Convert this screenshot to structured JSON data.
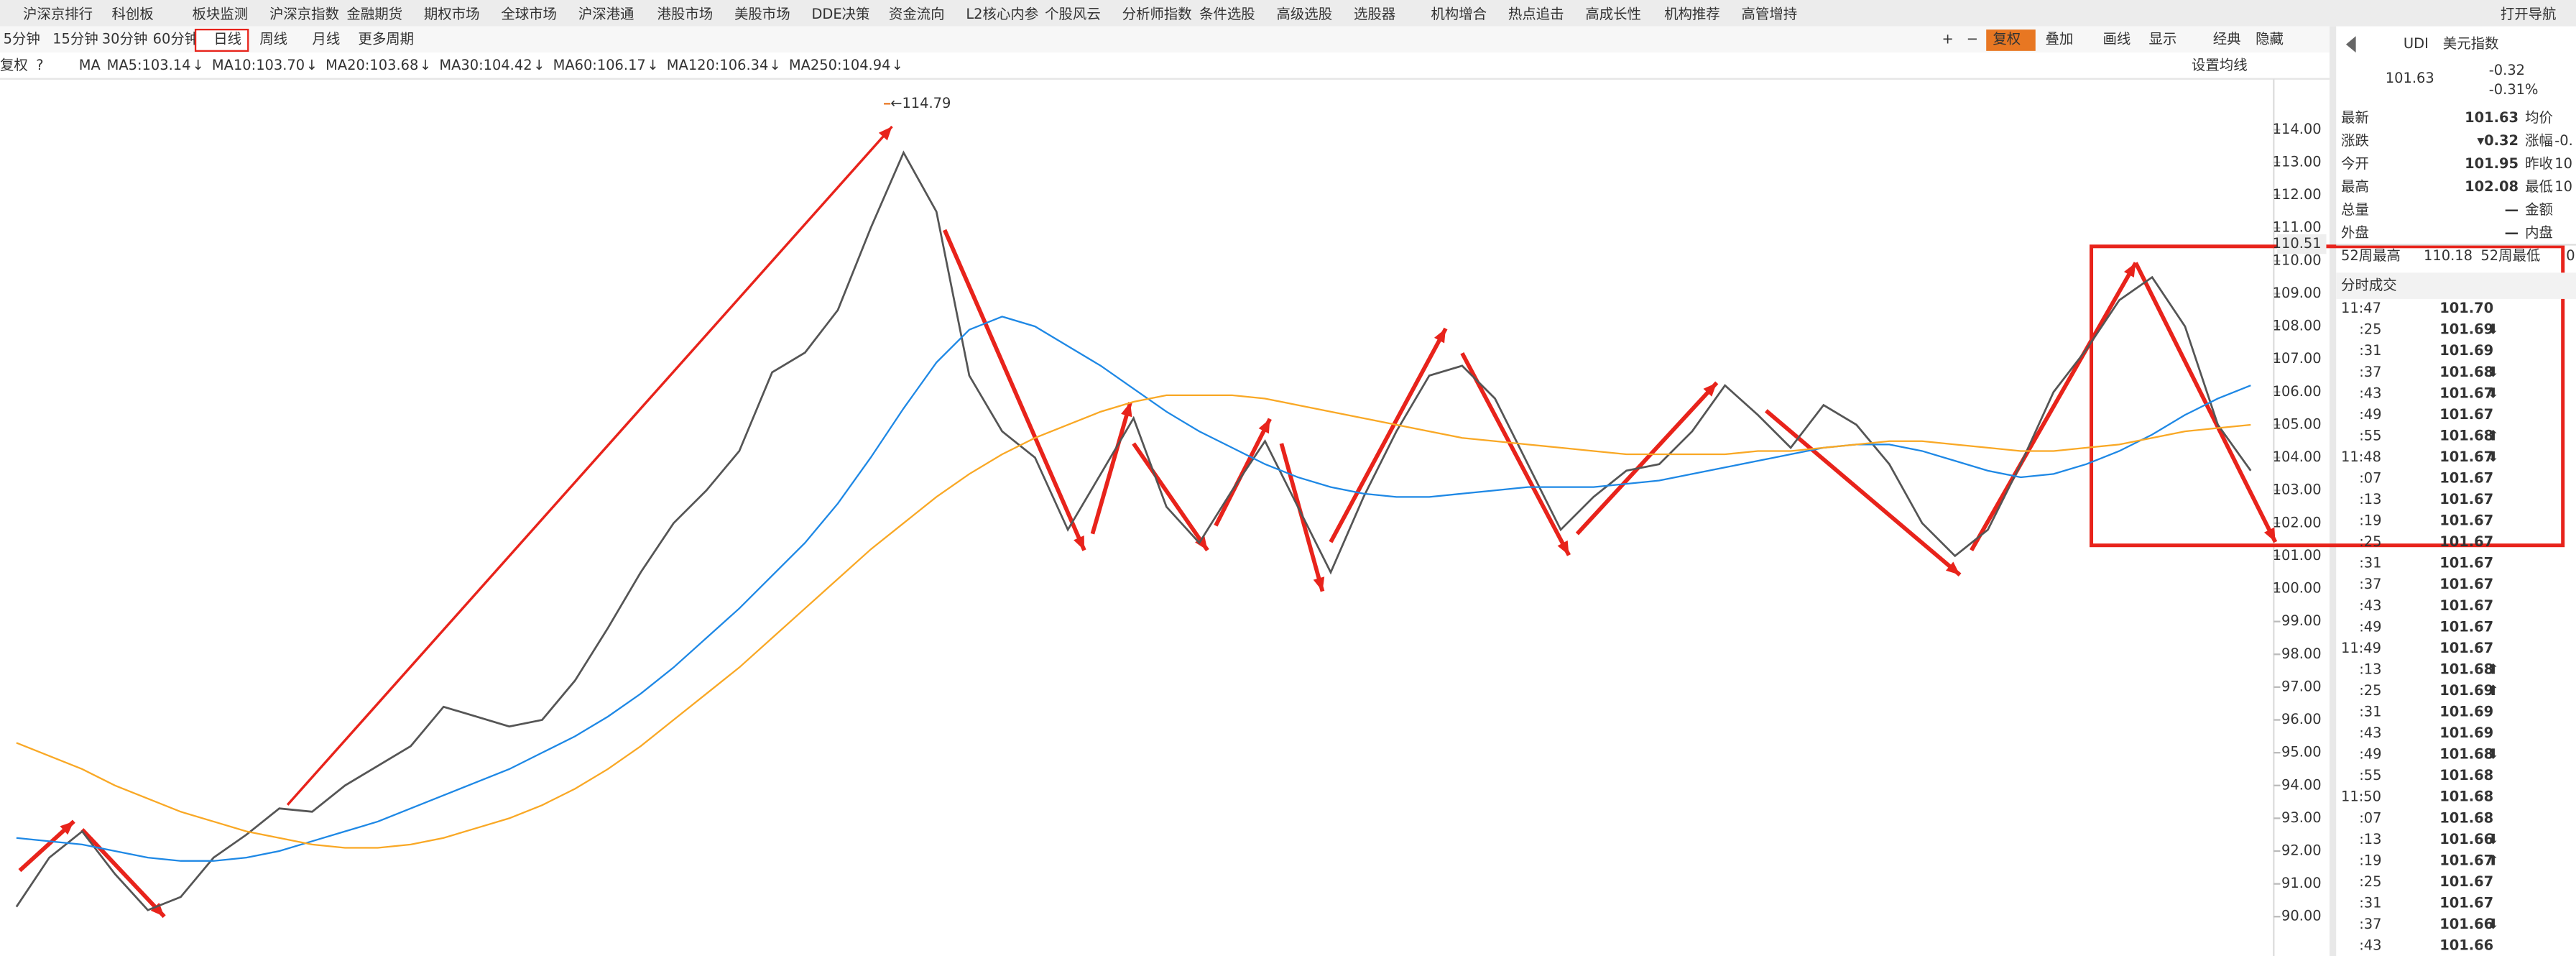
{
  "menu": [
    "沪深京排行",
    "科创板",
    "板块监测",
    "沪深京指数",
    "金融期货",
    "期权市场",
    "全球市场",
    "沪深港通",
    "港股市场",
    "美股市场",
    "DDE决策",
    "资金流向",
    "L2核心内参",
    "个股风云",
    "分析师指数",
    "条件选股",
    "高级选股",
    "选股器",
    "机构增合",
    "热点追击",
    "高成长性",
    "机构推荐",
    "高管增持",
    "打开导航"
  ],
  "periods": [
    "5分钟",
    "15分钟",
    "30分钟",
    "60分钟",
    "日线",
    "周线",
    "月线",
    "更多周期"
  ],
  "tools": [
    "+",
    "−",
    "复权",
    "叠加",
    "画线",
    "显示",
    "经典",
    "隐藏"
  ],
  "ma_bar": {
    "prefix": [
      "复权",
      "?",
      "MA"
    ],
    "items": [
      {
        "label": "MA5:103.14",
        "arrow": "↓",
        "color": "#1a237e"
      },
      {
        "label": "MA10:103.70",
        "arrow": "↓",
        "color": "#e040fb"
      },
      {
        "label": "MA20:103.68",
        "arrow": "↓",
        "color": "#555555"
      },
      {
        "label": "MA30:104.42",
        "arrow": "↓",
        "color": "#b71c1c"
      },
      {
        "label": "MA60:106.17",
        "arrow": "↓",
        "color": "#2e7d32"
      },
      {
        "label": "MA120:106.34",
        "arrow": "↓",
        "color": "#1e88e5"
      },
      {
        "label": "MA250:104.94",
        "arrow": "↓",
        "color": "#f9a825"
      }
    ],
    "settings": "设置均线"
  },
  "chart_data": {
    "type": "line",
    "ylim": [
      88.8,
      115.55
    ],
    "yticks": [
      {
        "value": 90,
        "label": "90.00"
      },
      {
        "value": 91,
        "label": "91.00"
      },
      {
        "value": 92,
        "label": "92.00"
      },
      {
        "value": 93,
        "label": "93.00"
      },
      {
        "value": 94,
        "label": "94.00"
      },
      {
        "value": 95,
        "label": "95.00"
      },
      {
        "value": 96,
        "label": "96.00"
      },
      {
        "value": 97,
        "label": "97.00"
      },
      {
        "value": 98,
        "label": "98.00"
      },
      {
        "value": 99,
        "label": "99.00"
      },
      {
        "value": 100,
        "label": "100.00"
      },
      {
        "value": 101,
        "label": "101.00"
      },
      {
        "value": 102,
        "label": "102.00"
      },
      {
        "value": 103,
        "label": "103.00"
      },
      {
        "value": 104,
        "label": "104.00"
      },
      {
        "value": 105,
        "label": "105.00"
      },
      {
        "value": 106,
        "label": "106.00"
      },
      {
        "value": 107,
        "label": "107.00"
      },
      {
        "value": 108,
        "label": "108.00"
      },
      {
        "value": 109,
        "label": "109.00"
      },
      {
        "value": 110,
        "label": "110.00"
      },
      {
        "value": 111,
        "label": "111.00"
      },
      {
        "value": 112,
        "label": "112.00"
      },
      {
        "value": 113,
        "label": "113.00"
      },
      {
        "value": 114,
        "label": "114.00"
      }
    ],
    "price_tag": {
      "value": 110.51,
      "label": "110.51"
    },
    "high_annotation": {
      "value": 114.79,
      "label": "←114.79"
    },
    "series": [
      {
        "color": "#555555",
        "values": [
          90.3,
          91.8,
          92.6,
          91.3,
          90.2,
          90.6,
          91.8,
          92.5,
          93.3,
          93.2,
          94,
          94.6,
          95.2,
          96.4,
          96.1,
          95.8,
          96,
          97.2,
          98.8,
          100.5,
          102,
          103,
          104.2,
          106.6,
          107.2,
          108.5,
          111,
          113.3,
          111.5,
          106.5,
          104.8,
          104,
          101.8,
          103.5,
          105.2,
          102.5,
          101.4,
          103,
          104.5,
          102.5,
          100.5,
          102.8,
          104.8,
          106.5,
          106.8,
          105.8,
          103.8,
          101.8,
          102.8,
          103.6,
          103.8,
          104.8,
          106.2,
          105.3,
          104.3,
          105.6,
          105,
          103.8,
          102,
          101,
          101.8,
          103.8,
          106,
          107.3,
          108.8,
          109.5,
          108,
          105,
          103.6
        ]
      },
      {
        "color": "#1e88e5",
        "values": [
          92.4,
          92.3,
          92.2,
          92.0,
          91.8,
          91.7,
          91.7,
          91.8,
          92.0,
          92.3,
          92.6,
          92.9,
          93.3,
          93.7,
          94.1,
          94.5,
          95.0,
          95.5,
          96.1,
          96.8,
          97.6,
          98.5,
          99.4,
          100.4,
          101.4,
          102.6,
          104.0,
          105.5,
          106.9,
          107.9,
          108.3,
          108.0,
          107.4,
          106.8,
          106.1,
          105.4,
          104.8,
          104.3,
          103.8,
          103.4,
          103.1,
          102.9,
          102.8,
          102.8,
          102.9,
          103.0,
          103.1,
          103.1,
          103.1,
          103.2,
          103.3,
          103.5,
          103.7,
          103.9,
          104.1,
          104.3,
          104.4,
          104.4,
          104.2,
          103.9,
          103.6,
          103.4,
          103.5,
          103.8,
          104.2,
          104.7,
          105.3,
          105.8,
          106.2
        ]
      },
      {
        "color": "#f9a825",
        "values": [
          95.3,
          94.9,
          94.5,
          94.0,
          93.6,
          93.2,
          92.9,
          92.6,
          92.4,
          92.2,
          92.1,
          92.1,
          92.2,
          92.4,
          92.7,
          93.0,
          93.4,
          93.9,
          94.5,
          95.2,
          96.0,
          96.8,
          97.6,
          98.5,
          99.4,
          100.3,
          101.2,
          102.0,
          102.8,
          103.5,
          104.1,
          104.6,
          105.0,
          105.4,
          105.7,
          105.9,
          105.9,
          105.9,
          105.8,
          105.6,
          105.4,
          105.2,
          105.0,
          104.8,
          104.6,
          104.5,
          104.4,
          104.3,
          104.2,
          104.1,
          104.1,
          104.1,
          104.1,
          104.2,
          104.2,
          104.3,
          104.4,
          104.5,
          104.5,
          104.4,
          104.3,
          104.2,
          104.2,
          104.3,
          104.4,
          104.6,
          104.8,
          104.9,
          105.0
        ]
      }
    ]
  },
  "sidebar": {
    "code": "UDI",
    "name": "美元指数",
    "price": "101.63",
    "change": "-0.32",
    "change_pct": "-0.31%",
    "quotes": [
      [
        "最新",
        "101.63",
        "均价",
        ""
      ],
      [
        "涨跌",
        "▾0.32",
        "涨幅",
        "-0."
      ],
      [
        "今开",
        "101.95",
        "昨收",
        "10"
      ],
      [
        "最高",
        "102.08",
        "最低",
        "10"
      ],
      [
        "总量",
        "—",
        "金额",
        ""
      ],
      [
        "外盘",
        "—",
        "内盘",
        ""
      ]
    ],
    "week52": [
      "52周最高",
      "110.18",
      "52周最低",
      "0"
    ],
    "trades_title": "分时成交",
    "trades": [
      [
        "11:47",
        "101.70",
        ""
      ],
      [
        ":25",
        "101.69",
        "⬇"
      ],
      [
        ":31",
        "101.69",
        ""
      ],
      [
        ":37",
        "101.68",
        "⬇"
      ],
      [
        ":43",
        "101.67",
        "⬇"
      ],
      [
        ":49",
        "101.67",
        ""
      ],
      [
        ":55",
        "101.68",
        "⬆"
      ],
      [
        "11:48",
        "101.67",
        "⬇"
      ],
      [
        ":07",
        "101.67",
        ""
      ],
      [
        ":13",
        "101.67",
        ""
      ],
      [
        ":19",
        "101.67",
        ""
      ],
      [
        ":25",
        "101.67",
        ""
      ],
      [
        ":31",
        "101.67",
        ""
      ],
      [
        ":37",
        "101.67",
        ""
      ],
      [
        ":43",
        "101.67",
        ""
      ],
      [
        ":49",
        "101.67",
        ""
      ],
      [
        "11:49",
        "101.67",
        ""
      ],
      [
        ":13",
        "101.68",
        "⬆"
      ],
      [
        ":25",
        "101.69",
        "⬆"
      ],
      [
        ":31",
        "101.69",
        ""
      ],
      [
        ":43",
        "101.69",
        ""
      ],
      [
        ":49",
        "101.68",
        "⬇"
      ],
      [
        ":55",
        "101.68",
        ""
      ],
      [
        "11:50",
        "101.68",
        ""
      ],
      [
        ":07",
        "101.68",
        ""
      ],
      [
        ":13",
        "101.66",
        "⬇"
      ],
      [
        ":19",
        "101.67",
        "⬆"
      ],
      [
        ":25",
        "101.67",
        ""
      ],
      [
        ":31",
        "101.67",
        ""
      ],
      [
        ":37",
        "101.66",
        "⬇"
      ],
      [
        ":43",
        "101.66",
        ""
      ]
    ]
  }
}
